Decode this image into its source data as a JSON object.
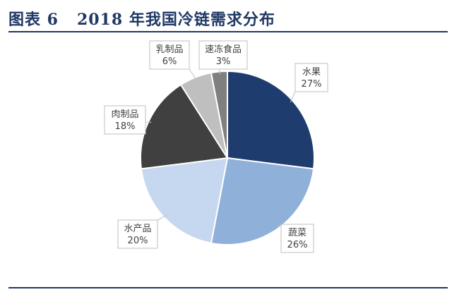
{
  "title": "图表 6   2018 年我国冷链需求分布",
  "chart_data": {
    "type": "pie",
    "title": "图表 6   2018 年我国冷链需求分布",
    "start": "top",
    "direction": "clockwise",
    "slices": [
      {
        "label": "水果",
        "value": 27,
        "value_label": "27%",
        "color": "#1f3c6e"
      },
      {
        "label": "蔬菜",
        "value": 26,
        "value_label": "26%",
        "color": "#8eb0d9"
      },
      {
        "label": "水产品",
        "value": 20,
        "value_label": "20%",
        "color": "#c6d8ef"
      },
      {
        "label": "肉制品",
        "value": 18,
        "value_label": "18%",
        "color": "#404040"
      },
      {
        "label": "乳制品",
        "value": 6,
        "value_label": "6%",
        "color": "#bfbfbf"
      },
      {
        "label": "速冻食品",
        "value": 3,
        "value_label": "3%",
        "color": "#7f7f7f"
      }
    ]
  }
}
